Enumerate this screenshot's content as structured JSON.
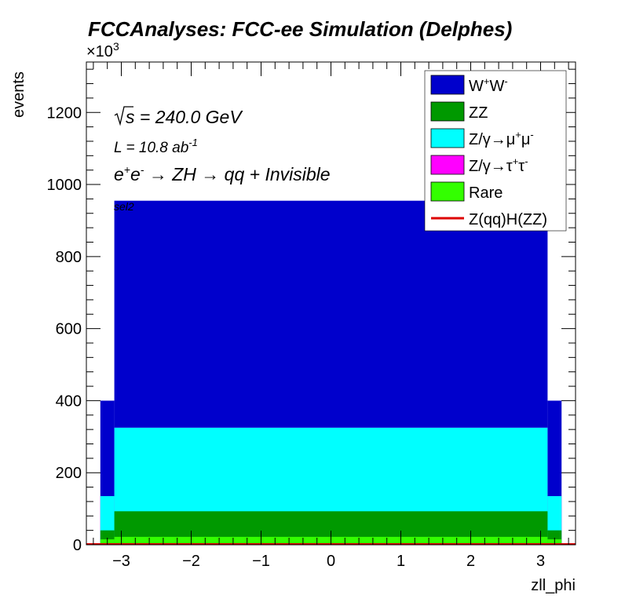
{
  "chart_data": {
    "type": "area",
    "title": "FCCAnalyses: FCC-ee Simulation (Delphes)",
    "xlabel": "zll_phi",
    "ylabel": "events",
    "y_multiplier": "×10",
    "y_multiplier_exp": "3",
    "xlim": [
      -3.5,
      3.5
    ],
    "ylim": [
      0,
      1340
    ],
    "xticks": [
      -3,
      -2,
      -1,
      0,
      1,
      2,
      3
    ],
    "xtick_labels": [
      "−3",
      "−2",
      "−1",
      "0",
      "1",
      "2",
      "3"
    ],
    "yticks": [
      0,
      200,
      400,
      600,
      800,
      1000,
      1200
    ],
    "ytick_labels": [
      "0",
      "200",
      "400",
      "600",
      "800",
      "1000",
      "1200"
    ],
    "bin_edges": [
      -3.3,
      -3.1,
      3.1,
      3.3
    ],
    "stack_order_bottom_to_top": [
      "Rare",
      "Z/γ→τ⁺τ⁻",
      "Z/γ→μ⁺μ⁻",
      "ZZ",
      "W⁺W⁻"
    ],
    "series": [
      {
        "name": "W⁺W⁻",
        "legend_base": "W",
        "legend_sup1": "+",
        "legend_mid": "W",
        "legend_sup2": "-",
        "color": "#0000cc",
        "cumulative_top": [
          400,
          955,
          400
        ]
      },
      {
        "name": "ZZ",
        "legend_base": "ZZ",
        "color": "#009900",
        "cumulative_top": [
          40,
          93,
          40
        ]
      },
      {
        "name": "Z/γ→μ⁺μ⁻",
        "legend_base": "Z/γ→μ",
        "legend_sup1": "+",
        "legend_mid": "μ",
        "legend_sup2": "-",
        "color": "#00ffff",
        "cumulative_top": [
          135,
          325,
          135
        ]
      },
      {
        "name": "Z/γ→τ⁺τ⁻",
        "legend_base": "Z/γ→τ",
        "legend_sup1": "+",
        "legend_mid": "τ",
        "legend_sup2": "-",
        "color": "#ff00ff",
        "cumulative_top": [
          135,
          325,
          135
        ]
      },
      {
        "name": "Rare",
        "legend_base": "Rare",
        "color": "#33ff00",
        "cumulative_top": [
          15,
          22,
          15
        ]
      },
      {
        "name": "Z(qq)H(ZZ)",
        "legend_base": "Z(qq)H(ZZ)",
        "color": "#dd0000",
        "line": true,
        "values": [
          0,
          0,
          0
        ]
      }
    ],
    "annotations": {
      "sqrt_s": "s = 240.0 GeV",
      "lumi_main": "L = 10.8 ab",
      "lumi_sup": "-1",
      "process_e": "e",
      "process_plus": "+",
      "process_e2": "e",
      "process_minus": "-",
      "process_rest": " → ZH → qq + Invisible",
      "selection": "sel2"
    },
    "legend_position": "top-right"
  }
}
